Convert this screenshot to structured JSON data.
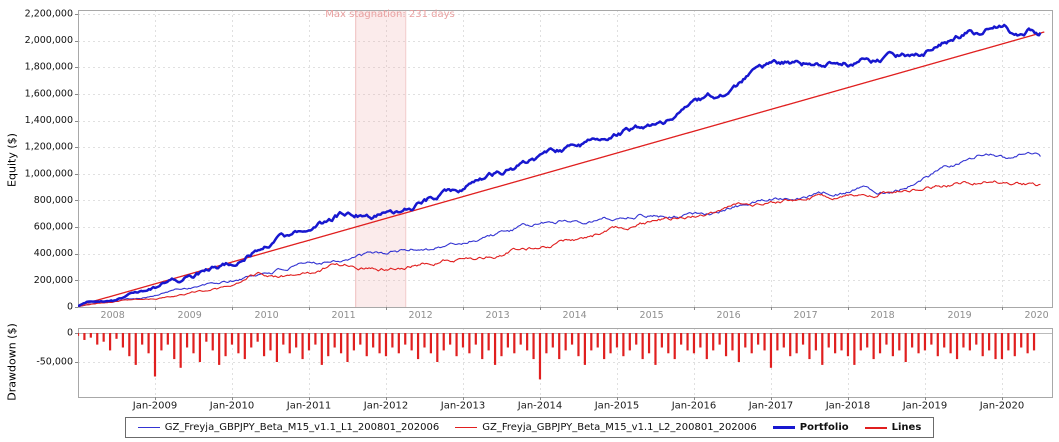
{
  "chart_data": {
    "type": "line",
    "title": "",
    "x_range": [
      2008.0,
      2020.65
    ],
    "top_year_labels": [
      "2008",
      "2009",
      "2010",
      "2011",
      "2012",
      "2013",
      "2014",
      "2015",
      "2016",
      "2017",
      "2018",
      "2019",
      "2020"
    ],
    "bottom_month_labels": [
      "Jan-2009",
      "Jan-2010",
      "Jan-2011",
      "Jan-2012",
      "Jan-2013",
      "Jan-2014",
      "Jan-2015",
      "Jan-2016",
      "Jan-2017",
      "Jan-2018",
      "Jan-2019",
      "Jan-2020"
    ],
    "equity_panel": {
      "ylabel": "Equity ($)",
      "ylim": [
        0,
        2200000
      ],
      "ytick_step": 200000,
      "grid": true
    },
    "stagnation": {
      "label": "Max stagnation: 231 days",
      "from": 2011.6,
      "to": 2012.25,
      "fill": "rgba(236,164,164,0.22)",
      "edge": "rgba(226,140,140,0.45)",
      "text_color": "#e9a0a0"
    },
    "series": [
      {
        "name": "GZ_Freyja_GBPJPY_Beta_M15_v1.1_L1_200801_202006",
        "color": "#3434d2",
        "width": 1.1,
        "noise": 20000,
        "points": [
          [
            2008.0,
            2000
          ],
          [
            2008.3,
            38000
          ],
          [
            2008.6,
            60000
          ],
          [
            2009.0,
            90000
          ],
          [
            2009.3,
            135000
          ],
          [
            2009.6,
            160000
          ],
          [
            2010.0,
            190000
          ],
          [
            2010.3,
            240000
          ],
          [
            2010.6,
            280000
          ],
          [
            2011.0,
            310000
          ],
          [
            2011.3,
            355000
          ],
          [
            2011.6,
            380000
          ],
          [
            2012.0,
            400000
          ],
          [
            2012.3,
            430000
          ],
          [
            2012.6,
            450000
          ],
          [
            2013.0,
            480000
          ],
          [
            2013.3,
            540000
          ],
          [
            2013.6,
            570000
          ],
          [
            2014.0,
            620000
          ],
          [
            2014.3,
            650000
          ],
          [
            2014.6,
            660000
          ],
          [
            2015.0,
            670000
          ],
          [
            2015.3,
            700000
          ],
          [
            2015.6,
            690000
          ],
          [
            2016.0,
            700000
          ],
          [
            2016.3,
            720000
          ],
          [
            2016.6,
            760000
          ],
          [
            2017.0,
            810000
          ],
          [
            2017.3,
            840000
          ],
          [
            2017.6,
            850000
          ],
          [
            2018.0,
            870000
          ],
          [
            2018.2,
            905000
          ],
          [
            2018.4,
            870000
          ],
          [
            2018.7,
            900000
          ],
          [
            2019.0,
            980000
          ],
          [
            2019.3,
            1050000
          ],
          [
            2019.6,
            1100000
          ],
          [
            2019.85,
            1160000
          ],
          [
            2020.05,
            1120000
          ],
          [
            2020.3,
            1160000
          ],
          [
            2020.5,
            1130000
          ]
        ]
      },
      {
        "name": "GZ_Freyja_GBPJPY_Beta_M15_v1.1_L2_200801_202006",
        "color": "#e01f1f",
        "width": 1.1,
        "noise": 20000,
        "points": [
          [
            2008.0,
            3000
          ],
          [
            2008.3,
            30000
          ],
          [
            2008.6,
            50000
          ],
          [
            2009.0,
            60000
          ],
          [
            2009.3,
            90000
          ],
          [
            2009.6,
            120000
          ],
          [
            2010.0,
            150000
          ],
          [
            2010.2,
            215000
          ],
          [
            2010.4,
            250000
          ],
          [
            2010.6,
            230000
          ],
          [
            2011.0,
            250000
          ],
          [
            2011.3,
            320000
          ],
          [
            2011.6,
            310000
          ],
          [
            2012.0,
            300000
          ],
          [
            2012.3,
            320000
          ],
          [
            2012.6,
            350000
          ],
          [
            2013.0,
            370000
          ],
          [
            2013.3,
            380000
          ],
          [
            2013.6,
            420000
          ],
          [
            2014.0,
            460000
          ],
          [
            2014.3,
            490000
          ],
          [
            2014.6,
            520000
          ],
          [
            2015.0,
            580000
          ],
          [
            2015.3,
            620000
          ],
          [
            2015.6,
            650000
          ],
          [
            2016.0,
            700000
          ],
          [
            2016.3,
            730000
          ],
          [
            2016.6,
            760000
          ],
          [
            2017.0,
            800000
          ],
          [
            2017.3,
            820000
          ],
          [
            2017.6,
            830000
          ],
          [
            2018.0,
            840000
          ],
          [
            2018.3,
            860000
          ],
          [
            2018.6,
            880000
          ],
          [
            2019.0,
            900000
          ],
          [
            2019.3,
            920000
          ],
          [
            2019.6,
            940000
          ],
          [
            2019.9,
            950000
          ],
          [
            2020.2,
            930000
          ],
          [
            2020.5,
            920000
          ]
        ]
      },
      {
        "name": "Lines",
        "color": "#e01f1f",
        "width": 1.3,
        "noise": 0,
        "points": [
          [
            2008.0,
            10000
          ],
          [
            2020.55,
            2065000
          ]
        ]
      },
      {
        "name": "Portfolio",
        "color": "#1717cf",
        "width": 2.5,
        "noise": 30000,
        "points": [
          [
            2008.0,
            5000
          ],
          [
            2008.15,
            45000
          ],
          [
            2008.3,
            55000
          ],
          [
            2008.45,
            50000
          ],
          [
            2008.6,
            90000
          ],
          [
            2008.8,
            115000
          ],
          [
            2009.0,
            140000
          ],
          [
            2009.2,
            200000
          ],
          [
            2009.4,
            230000
          ],
          [
            2009.6,
            265000
          ],
          [
            2009.8,
            300000
          ],
          [
            2010.0,
            330000
          ],
          [
            2010.2,
            400000
          ],
          [
            2010.4,
            450000
          ],
          [
            2010.6,
            500000
          ],
          [
            2010.8,
            530000
          ],
          [
            2011.0,
            560000
          ],
          [
            2011.2,
            620000
          ],
          [
            2011.4,
            685000
          ],
          [
            2011.55,
            700000
          ],
          [
            2011.75,
            685000
          ],
          [
            2011.95,
            695000
          ],
          [
            2012.1,
            705000
          ],
          [
            2012.3,
            755000
          ],
          [
            2012.5,
            800000
          ],
          [
            2012.7,
            840000
          ],
          [
            2012.9,
            865000
          ],
          [
            2013.1,
            920000
          ],
          [
            2013.3,
            960000
          ],
          [
            2013.5,
            1000000
          ],
          [
            2013.7,
            1050000
          ],
          [
            2013.9,
            1095000
          ],
          [
            2014.1,
            1130000
          ],
          [
            2014.3,
            1165000
          ],
          [
            2014.5,
            1195000
          ],
          [
            2014.7,
            1225000
          ],
          [
            2014.9,
            1270000
          ],
          [
            2015.1,
            1315000
          ],
          [
            2015.3,
            1350000
          ],
          [
            2015.5,
            1390000
          ],
          [
            2015.7,
            1430000
          ],
          [
            2015.9,
            1470000
          ],
          [
            2016.1,
            1520000
          ],
          [
            2016.3,
            1575000
          ],
          [
            2016.5,
            1640000
          ],
          [
            2016.7,
            1730000
          ],
          [
            2016.85,
            1800000
          ],
          [
            2017.0,
            1810000
          ],
          [
            2017.2,
            1830000
          ],
          [
            2017.4,
            1815000
          ],
          [
            2017.6,
            1840000
          ],
          [
            2017.8,
            1825000
          ],
          [
            2018.0,
            1840000
          ],
          [
            2018.2,
            1860000
          ],
          [
            2018.4,
            1845000
          ],
          [
            2018.6,
            1875000
          ],
          [
            2018.8,
            1895000
          ],
          [
            2019.0,
            1920000
          ],
          [
            2019.2,
            1965000
          ],
          [
            2019.4,
            2020000
          ],
          [
            2019.6,
            2080000
          ],
          [
            2019.75,
            2055000
          ],
          [
            2019.9,
            2090000
          ],
          [
            2020.05,
            2095000
          ],
          [
            2020.2,
            2030000
          ],
          [
            2020.35,
            2085000
          ],
          [
            2020.5,
            2060000
          ]
        ]
      }
    ],
    "drawdown_panel": {
      "ylabel": "Drawdown ($)",
      "yticks": [
        0,
        -50000
      ],
      "ymin": -118000,
      "bar_color": "#e01f1f",
      "t_start": 2008.0,
      "t_step": 0.0833333,
      "values": [
        -5000,
        -12000,
        -8000,
        -20000,
        -15000,
        -30000,
        -10000,
        -25000,
        -40000,
        -55000,
        -20000,
        -35000,
        -75000,
        -30000,
        -20000,
        -45000,
        -60000,
        -25000,
        -35000,
        -50000,
        -15000,
        -30000,
        -55000,
        -40000,
        -20000,
        -35000,
        -45000,
        -25000,
        -15000,
        -40000,
        -30000,
        -50000,
        -20000,
        -35000,
        -25000,
        -45000,
        -30000,
        -20000,
        -55000,
        -40000,
        -25000,
        -35000,
        -50000,
        -30000,
        -20000,
        -40000,
        -25000,
        -35000,
        -40000,
        -25000,
        -35000,
        -20000,
        -30000,
        -45000,
        -25000,
        -35000,
        -50000,
        -30000,
        -20000,
        -40000,
        -25000,
        -35000,
        -20000,
        -45000,
        -30000,
        -55000,
        -40000,
        -25000,
        -35000,
        -20000,
        -30000,
        -45000,
        -80000,
        -35000,
        -25000,
        -45000,
        -30000,
        -20000,
        -40000,
        -55000,
        -30000,
        -25000,
        -45000,
        -35000,
        -25000,
        -40000,
        -30000,
        -20000,
        -45000,
        -35000,
        -55000,
        -25000,
        -35000,
        -45000,
        -20000,
        -30000,
        -35000,
        -25000,
        -45000,
        -30000,
        -20000,
        -40000,
        -30000,
        -50000,
        -25000,
        -35000,
        -20000,
        -30000,
        -60000,
        -30000,
        -25000,
        -40000,
        -35000,
        -20000,
        -45000,
        -30000,
        -55000,
        -25000,
        -35000,
        -30000,
        -40000,
        -55000,
        -30000,
        -25000,
        -45000,
        -35000,
        -20000,
        -40000,
        -30000,
        -50000,
        -25000,
        -35000,
        -30000,
        -20000,
        -40000,
        -25000,
        -35000,
        -45000,
        -25000,
        -30000,
        -20000,
        -40000,
        -30000,
        -45000,
        -45000,
        -30000,
        -40000,
        -25000,
        -35000,
        -30000
      ]
    },
    "legend": [
      {
        "label": "GZ_Freyja_GBPJPY_Beta_M15_v1.1_L1_200801_202006",
        "color": "#3434d2",
        "bold": false,
        "swatch": 1.5
      },
      {
        "label": "GZ_Freyja_GBPJPY_Beta_M15_v1.1_L2_200801_202006",
        "color": "#e01f1f",
        "bold": false,
        "swatch": 1.5
      },
      {
        "label": "Portfolio",
        "color": "#1717cf",
        "bold": true,
        "swatch": 3
      },
      {
        "label": "Lines",
        "color": "#e01f1f",
        "bold": true,
        "swatch": 2
      }
    ]
  }
}
